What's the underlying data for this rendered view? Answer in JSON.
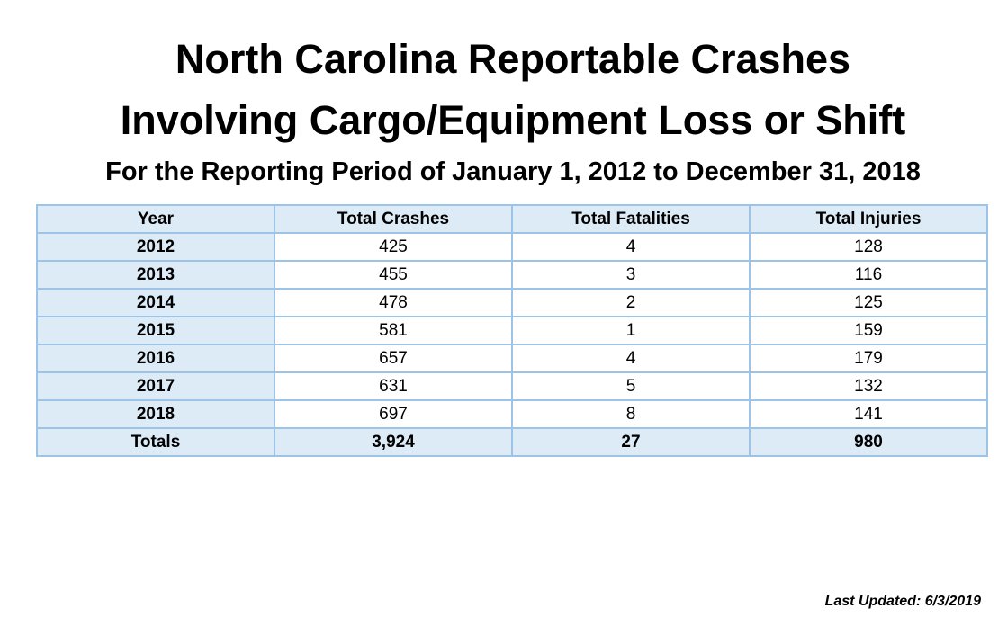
{
  "title": {
    "line1": "North Carolina Reportable Crashes",
    "line2": "Involving Cargo/Equipment Loss or Shift",
    "subtitle": "For the Reporting Period of January 1, 2012 to December 31, 2018"
  },
  "table": {
    "headers": [
      "Year",
      "Total Crashes",
      "Total Fatalities",
      "Total Injuries"
    ],
    "rows": [
      [
        "2012",
        "425",
        "4",
        "128"
      ],
      [
        "2013",
        "455",
        "3",
        "116"
      ],
      [
        "2014",
        "478",
        "2",
        "125"
      ],
      [
        "2015",
        "581",
        "1",
        "159"
      ],
      [
        "2016",
        "657",
        "4",
        "179"
      ],
      [
        "2017",
        "631",
        "5",
        "132"
      ],
      [
        "2018",
        "697",
        "8",
        "141"
      ]
    ],
    "totals": [
      "Totals",
      "3,924",
      "27",
      "980"
    ]
  },
  "last_updated": "Last Updated: 6/3/2019"
}
